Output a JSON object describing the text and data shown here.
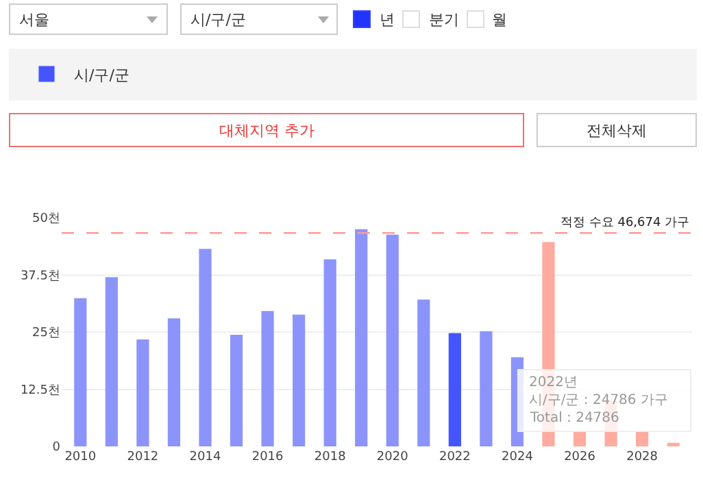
{
  "chart_data": {
    "type": "bar",
    "x": [
      2010,
      2011,
      2012,
      2013,
      2014,
      2015,
      2016,
      2017,
      2018,
      2019,
      2020,
      2021,
      2022,
      2023,
      2024,
      2025,
      2026,
      2027,
      2028,
      2029
    ],
    "series": [
      {
        "name": "시/구/군",
        "color": "#4455ff",
        "values": [
          32.4,
          37.0,
          23.4,
          28.0,
          43.2,
          24.4,
          29.6,
          28.8,
          40.9,
          47.5,
          46.3,
          32.1,
          24.786,
          25.2,
          19.5,
          44.7,
          3.4,
          10.0,
          3.2,
          0.8
        ],
        "colors": [
          "#8c94fb",
          "#8c94fb",
          "#8c94fb",
          "#8c94fb",
          "#8c94fb",
          "#8c94fb",
          "#8c94fb",
          "#8c94fb",
          "#8c94fb",
          "#8c94fb",
          "#8c94fb",
          "#8c94fb",
          "#4455ff",
          "#8c94fb",
          "#8c94fb",
          "#ffab9f",
          "#ffab9f",
          "#ffab9f",
          "#ffab9f",
          "#ffab9f"
        ]
      }
    ],
    "xlim": [
      2009.4,
      2029.6
    ],
    "xticks": [
      2010,
      2012,
      2014,
      2016,
      2018,
      2020,
      2022,
      2024,
      2026,
      2028
    ],
    "ylim": [
      0,
      50
    ],
    "yticks": [
      0,
      {
        "value": 12.5,
        "label": "12.5천"
      },
      {
        "value": 25,
        "label": "25천"
      },
      {
        "value": 37.5,
        "label": "37.5천"
      },
      {
        "value": 50,
        "label": "50천"
      }
    ],
    "ref_lines": [
      {
        "axis": "y",
        "value": 46.674,
        "label": "적정 수요 46,674 가구",
        "color": "#ff9999",
        "line_style": "dashed"
      }
    ],
    "grid": "y",
    "legend": "top left",
    "annotations": [
      "서울",
      "시/구/군",
      "년",
      "분기",
      "월",
      "대체지역 추가",
      "전체삭제",
      "2022년",
      "시/구/군 : 24786 가구",
      "Total : 24786"
    ]
  }
}
